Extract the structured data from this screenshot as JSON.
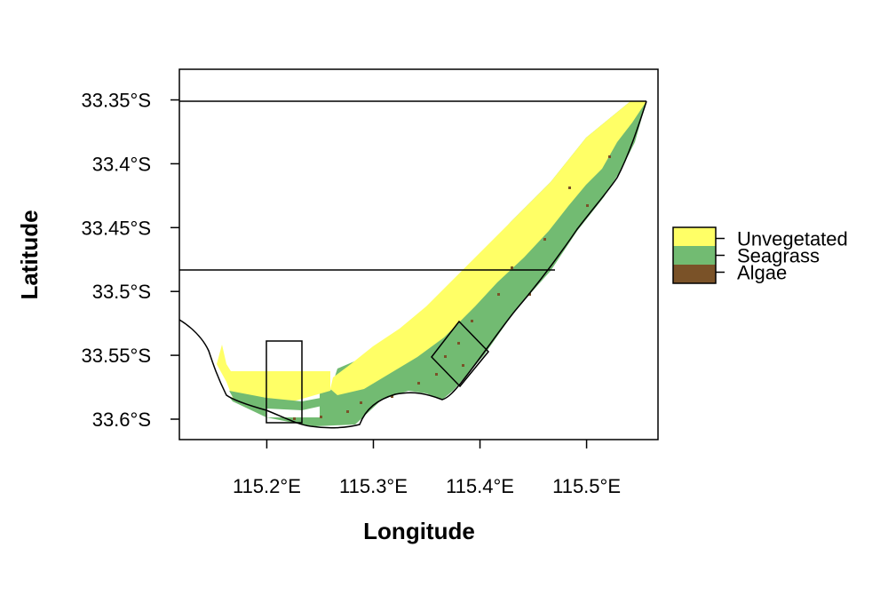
{
  "map": {
    "xlabel": "Longitude",
    "ylabel": "Latitude",
    "x_ticks": [
      {
        "value": 115.2,
        "label": "115.2°E"
      },
      {
        "value": 115.3,
        "label": "115.3°E"
      },
      {
        "value": 115.4,
        "label": "115.4°E"
      },
      {
        "value": 115.5,
        "label": "115.5°E"
      }
    ],
    "y_ticks": [
      {
        "value": -33.35,
        "label": "33.35°S"
      },
      {
        "value": -33.4,
        "label": "33.4°S"
      },
      {
        "value": -33.45,
        "label": "33.45°S"
      },
      {
        "value": -33.5,
        "label": "33.5°S"
      },
      {
        "value": -33.55,
        "label": "33.55°S"
      },
      {
        "value": -33.6,
        "label": "33.6°S"
      }
    ],
    "xlim": [
      115.118,
      115.567
    ],
    "ylim": [
      -33.616,
      -33.326
    ],
    "reference_lines_lat": [
      -33.35,
      -33.482
    ],
    "legend": {
      "position": "right",
      "items": [
        {
          "name": "Unvegetated",
          "color": "#FFFF66"
        },
        {
          "name": "Seagrass",
          "color": "#72BB72"
        },
        {
          "name": "Algae",
          "color": "#7A5228"
        }
      ]
    },
    "grid": false
  }
}
